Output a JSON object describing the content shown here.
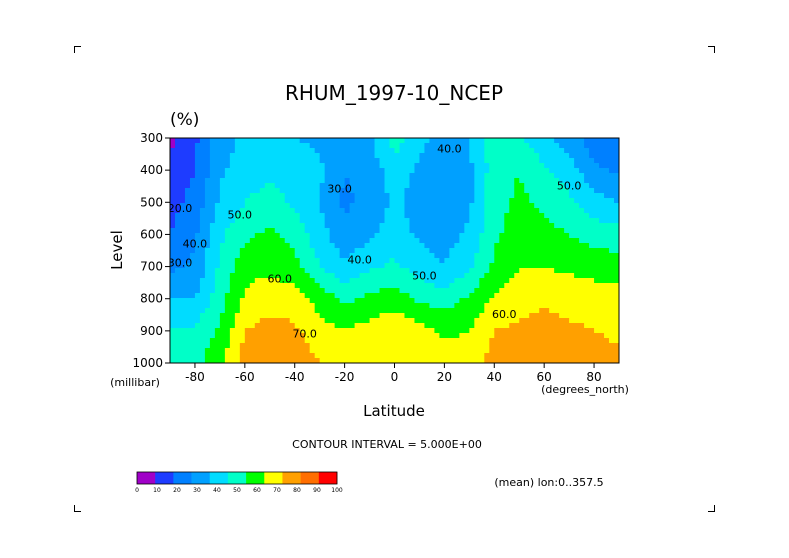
{
  "chart_data": {
    "type": "heatmap",
    "title": "RHUM_1997-10_NCEP",
    "units": "(%)",
    "xlabel": "Latitude",
    "ylabel": "Level",
    "x_units": "(degrees_north)",
    "y_units": "(millibar)",
    "xlim": [
      -90,
      90
    ],
    "ylim": [
      1000,
      300
    ],
    "x_ticks": [
      -80,
      -60,
      -40,
      -20,
      0,
      20,
      40,
      60,
      80
    ],
    "x_tick_labels": [
      "-80",
      "-60",
      "-40",
      "-20",
      "0",
      "20",
      "40",
      "60",
      "80"
    ],
    "y_ticks": [
      300,
      400,
      500,
      600,
      700,
      800,
      900,
      1000
    ],
    "y_tick_labels": [
      "300",
      "400",
      "500",
      "600",
      "700",
      "800",
      "900",
      "1000"
    ],
    "contour_interval_text": "CONTOUR INTERVAL = 5.000E+00",
    "mean_text": "(mean) lon:0..357.5",
    "colorbar": {
      "levels": [
        0,
        10,
        20,
        30,
        40,
        50,
        60,
        70,
        80,
        90,
        100
      ],
      "labels": [
        "0",
        "10",
        "20",
        "30",
        "40",
        "50",
        "60",
        "70",
        "80",
        "90",
        "100"
      ],
      "colors": [
        "#a000c8",
        "#1e3cff",
        "#0080ff",
        "#00a0ff",
        "#00dcff",
        "#00ffc8",
        "#00ff00",
        "#ffff00",
        "#ffa000",
        "#ff6e00",
        "#ff0000"
      ]
    },
    "contour_labels": [
      {
        "text": "40.0",
        "lat": 22,
        "lev": 345
      },
      {
        "text": "30.0",
        "lat": -22,
        "lev": 470
      },
      {
        "text": "50.0",
        "lat": 70,
        "lev": 460
      },
      {
        "text": "50.0",
        "lat": -62,
        "lev": 550
      },
      {
        "text": "20.0",
        "lat": -86,
        "lev": 530
      },
      {
        "text": "40.0",
        "lat": -80,
        "lev": 640
      },
      {
        "text": "30.0",
        "lat": -86,
        "lev": 700
      },
      {
        "text": "40.0",
        "lat": -14,
        "lev": 690
      },
      {
        "text": "50.0",
        "lat": 12,
        "lev": 740
      },
      {
        "text": "60.0",
        "lat": -46,
        "lev": 750
      },
      {
        "text": "70.0",
        "lat": -36,
        "lev": 920
      },
      {
        "text": "60.0",
        "lat": 44,
        "lev": 860
      }
    ],
    "lat": [
      -90,
      -80,
      -70,
      -60,
      -50,
      -40,
      -30,
      -20,
      -10,
      0,
      10,
      20,
      30,
      40,
      50,
      60,
      70,
      80,
      90
    ],
    "levels": [
      300,
      400,
      500,
      600,
      700,
      800,
      900,
      1000
    ],
    "values": [
      [
        8,
        18,
        35,
        42,
        45,
        40,
        38,
        34,
        38,
        55,
        42,
        38,
        40,
        55,
        52,
        42,
        35,
        25,
        22
      ],
      [
        12,
        20,
        38,
        45,
        48,
        45,
        42,
        30,
        35,
        45,
        38,
        35,
        38,
        55,
        60,
        52,
        45,
        32,
        28
      ],
      [
        16,
        24,
        42,
        50,
        54,
        48,
        40,
        28,
        33,
        42,
        35,
        34,
        38,
        56,
        62,
        58,
        52,
        44,
        40
      ],
      [
        20,
        28,
        48,
        58,
        62,
        56,
        44,
        33,
        38,
        45,
        38,
        36,
        42,
        58,
        65,
        63,
        60,
        56,
        54
      ],
      [
        28,
        32,
        52,
        66,
        68,
        64,
        50,
        42,
        48,
        52,
        45,
        40,
        48,
        62,
        70,
        70,
        68,
        66,
        65
      ],
      [
        40,
        40,
        56,
        72,
        76,
        74,
        66,
        58,
        62,
        65,
        58,
        55,
        62,
        72,
        76,
        78,
        76,
        75,
        74
      ],
      [
        50,
        52,
        62,
        80,
        84,
        82,
        74,
        70,
        74,
        78,
        74,
        68,
        70,
        80,
        82,
        84,
        82,
        80,
        78
      ],
      [
        55,
        58,
        66,
        86,
        90,
        86,
        80,
        76,
        78,
        80,
        78,
        74,
        76,
        84,
        88,
        90,
        88,
        85,
        82
      ]
    ]
  }
}
